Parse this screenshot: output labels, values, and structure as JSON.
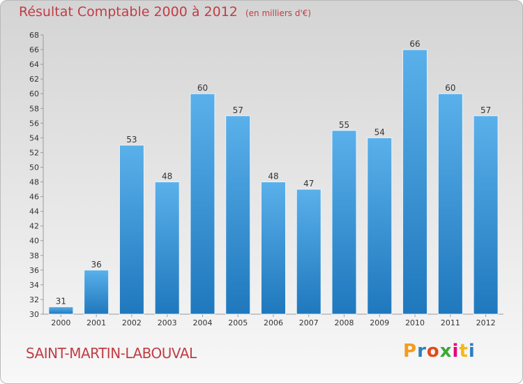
{
  "header": {
    "title": "Résultat Comptable 2000 à 2012",
    "unit": "(en milliers d'€)"
  },
  "footer": {
    "commune": "SAINT-MARTIN-LABOUVAL",
    "logo_text": "Proxiti",
    "logo_colors": [
      "#f39c1f",
      "#2c7fc1",
      "#e24a1b",
      "#39a935",
      "#e5007d",
      "#f6b817",
      "#2c7fc1"
    ]
  },
  "colors": {
    "title": "#c23c44",
    "bar_top": "#5ab0ea",
    "bar_bottom": "#1f78bd"
  },
  "chart_data": {
    "type": "bar",
    "title": "Résultat Comptable 2000 à 2012",
    "ylabel": "(en milliers d'€)",
    "categories": [
      "2000",
      "2001",
      "2002",
      "2003",
      "2004",
      "2005",
      "2006",
      "2007",
      "2008",
      "2009",
      "2010",
      "2011",
      "2012"
    ],
    "values": [
      31,
      36,
      53,
      48,
      60,
      57,
      48,
      47,
      55,
      54,
      66,
      60,
      57
    ],
    "ylim": [
      30,
      68
    ],
    "ytick_step": 2,
    "grid": false,
    "data_labels": true
  }
}
